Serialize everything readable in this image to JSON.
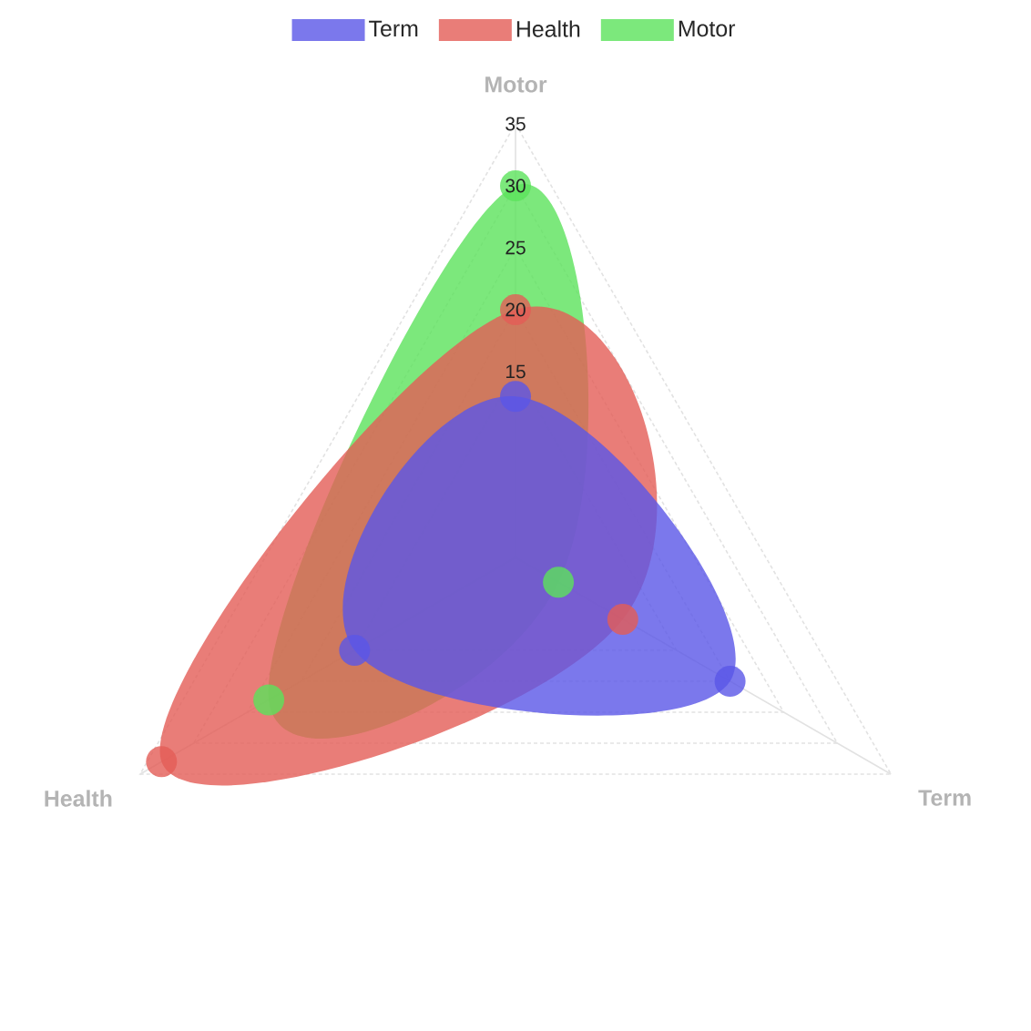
{
  "chart_data": {
    "type": "radar",
    "categories": [
      "Motor",
      "Term",
      "Health"
    ],
    "series": [
      {
        "name": "Term",
        "color": "#7b78ec",
        "values": [
          13,
          20,
          15
        ]
      },
      {
        "name": "Health",
        "color": "#e97d78",
        "values": [
          20,
          10,
          33
        ]
      },
      {
        "name": "Motor",
        "color": "#7ce87c",
        "values": [
          30,
          4,
          23
        ]
      }
    ],
    "ylim": [
      0,
      35
    ],
    "yticks": [
      15,
      20,
      25,
      30,
      35
    ],
    "grid": true,
    "legend": "top",
    "marker": "circle"
  }
}
